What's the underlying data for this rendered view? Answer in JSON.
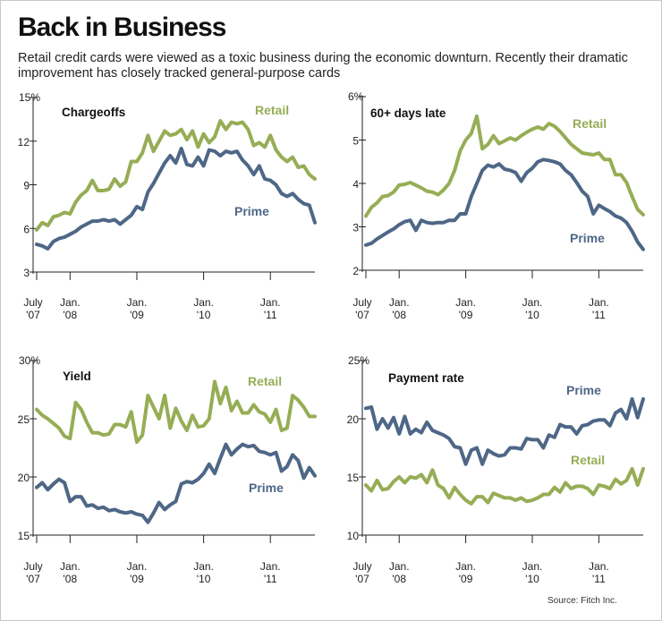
{
  "header": {
    "title": "Back in Business",
    "subtitle": "Retail credit cards were viewed as a toxic business during the economic downturn. Recently their dramatic improvement has closely tracked general-purpose cards"
  },
  "source": "Source: Fitch Inc.",
  "colors": {
    "retail": "#96ad55",
    "prime": "#4e6786",
    "axis": "#222222"
  },
  "chart_data": [
    {
      "type": "line",
      "title": "Chargeoffs",
      "ylabel": "%",
      "ylim": [
        3,
        15
      ],
      "yticks": [
        "15%",
        "12",
        "9",
        "6",
        "3"
      ],
      "xticks": [
        {
          "top": "July",
          "bottom": "'07"
        },
        {
          "top": "Jan.",
          "bottom": "'08"
        },
        {
          "top": "Jan.",
          "bottom": "'09"
        },
        {
          "top": "Jan.",
          "bottom": "'10"
        },
        {
          "top": "Jan.",
          "bottom": "'11"
        }
      ],
      "x_start": "2007-07",
      "series": [
        {
          "name": "Retail",
          "values": [
            5.9,
            6.4,
            6.2,
            6.8,
            6.9,
            7.1,
            7.0,
            7.8,
            8.3,
            8.6,
            9.3,
            8.6,
            8.6,
            8.7,
            9.4,
            8.9,
            9.2,
            10.6,
            10.6,
            11.2,
            12.4,
            11.3,
            12.0,
            12.7,
            12.4,
            12.5,
            12.8,
            12.1,
            12.7,
            11.6,
            12.5,
            11.9,
            12.3,
            13.4,
            12.8,
            13.3,
            13.2,
            13.3,
            12.8,
            11.7,
            11.9,
            11.6,
            12.4,
            11.4,
            10.9,
            10.6,
            10.9,
            10.2,
            10.3,
            9.7,
            9.4
          ]
        },
        {
          "name": "Prime",
          "values": [
            4.9,
            4.8,
            4.6,
            5.1,
            5.3,
            5.4,
            5.6,
            5.8,
            6.1,
            6.3,
            6.5,
            6.5,
            6.6,
            6.5,
            6.6,
            6.3,
            6.6,
            6.9,
            7.5,
            7.3,
            8.5,
            9.1,
            9.8,
            10.5,
            11.0,
            10.5,
            11.5,
            10.4,
            10.3,
            10.9,
            10.3,
            11.4,
            11.3,
            11.0,
            11.3,
            11.2,
            11.3,
            10.7,
            10.3,
            9.7,
            10.3,
            9.4,
            9.3,
            9.0,
            8.4,
            8.2,
            8.4,
            8.0,
            7.7,
            7.6,
            6.4
          ]
        }
      ]
    },
    {
      "type": "line",
      "title": "60+ days late",
      "ylabel": "%",
      "ylim": [
        2,
        6
      ],
      "yticks": [
        "6%",
        "5",
        "4",
        "3",
        "2"
      ],
      "xticks": [
        {
          "top": "July",
          "bottom": "'07"
        },
        {
          "top": "Jan.",
          "bottom": "'08"
        },
        {
          "top": "Jan.",
          "bottom": "'09"
        },
        {
          "top": "Jan.",
          "bottom": "'10"
        },
        {
          "top": "Jan.",
          "bottom": "'11"
        }
      ],
      "x_start": "2007-07",
      "series": [
        {
          "name": "Retail",
          "values": [
            3.25,
            3.45,
            3.55,
            3.7,
            3.72,
            3.8,
            3.96,
            3.98,
            4.02,
            3.96,
            3.9,
            3.82,
            3.8,
            3.74,
            3.85,
            4.0,
            4.3,
            4.75,
            5.0,
            5.15,
            5.55,
            4.8,
            4.9,
            5.1,
            4.92,
            4.98,
            5.05,
            5.0,
            5.1,
            5.18,
            5.25,
            5.3,
            5.25,
            5.38,
            5.32,
            5.2,
            5.05,
            4.9,
            4.8,
            4.7,
            4.68,
            4.66,
            4.7,
            4.55,
            4.55,
            4.2,
            4.2,
            4.02,
            3.7,
            3.4,
            3.28
          ]
        },
        {
          "name": "Prime",
          "values": [
            2.58,
            2.62,
            2.72,
            2.8,
            2.88,
            2.95,
            3.05,
            3.12,
            3.15,
            2.92,
            3.15,
            3.1,
            3.08,
            3.1,
            3.1,
            3.15,
            3.15,
            3.3,
            3.3,
            3.7,
            4.0,
            4.3,
            4.42,
            4.38,
            4.45,
            4.33,
            4.3,
            4.25,
            4.05,
            4.25,
            4.35,
            4.5,
            4.55,
            4.53,
            4.5,
            4.45,
            4.3,
            4.2,
            4.02,
            3.82,
            3.7,
            3.3,
            3.5,
            3.42,
            3.35,
            3.25,
            3.2,
            3.1,
            2.9,
            2.65,
            2.48
          ]
        }
      ]
    },
    {
      "type": "line",
      "title": "Yield",
      "ylabel": "%",
      "ylim": [
        15,
        30
      ],
      "yticks": [
        "30%",
        "25",
        "20",
        "15"
      ],
      "xticks": [
        {
          "top": "July",
          "bottom": "'07"
        },
        {
          "top": "Jan.",
          "bottom": "'08"
        },
        {
          "top": "Jan.",
          "bottom": "'09"
        },
        {
          "top": "Jan.",
          "bottom": "'10"
        },
        {
          "top": "Jan.",
          "bottom": "'11"
        }
      ],
      "x_start": "2007-07",
      "series": [
        {
          "name": "Retail",
          "values": [
            25.8,
            25.3,
            25.0,
            24.6,
            24.2,
            23.5,
            23.3,
            26.4,
            25.8,
            24.7,
            23.8,
            23.8,
            23.6,
            23.7,
            24.5,
            24.5,
            24.3,
            25.6,
            23.0,
            23.6,
            27.0,
            26.0,
            25.0,
            27.0,
            24.2,
            25.9,
            24.8,
            24.0,
            25.3,
            24.3,
            24.4,
            25.0,
            28.2,
            26.3,
            27.7,
            25.7,
            26.5,
            25.5,
            25.5,
            26.2,
            25.6,
            25.4,
            24.7,
            25.8,
            24.0,
            24.2,
            27.0,
            26.6,
            26.0,
            25.2,
            25.2
          ]
        },
        {
          "name": "Prime",
          "values": [
            19.1,
            19.5,
            18.9,
            19.4,
            19.8,
            19.5,
            17.9,
            18.3,
            18.3,
            17.5,
            17.6,
            17.3,
            17.4,
            17.1,
            17.2,
            17.0,
            16.9,
            17.0,
            16.8,
            16.7,
            16.1,
            16.9,
            17.8,
            17.2,
            17.6,
            17.9,
            19.4,
            19.6,
            19.5,
            19.8,
            20.3,
            21.1,
            20.3,
            21.6,
            22.8,
            21.9,
            22.4,
            22.8,
            22.6,
            22.7,
            22.2,
            22.1,
            21.9,
            22.1,
            20.5,
            20.9,
            21.9,
            21.4,
            19.9,
            20.8,
            20.1
          ]
        }
      ]
    },
    {
      "type": "line",
      "title": "Payment rate",
      "ylabel": "%",
      "ylim": [
        10,
        25
      ],
      "yticks": [
        "25%",
        "20",
        "15",
        "10"
      ],
      "xticks": [
        {
          "top": "July",
          "bottom": "'07"
        },
        {
          "top": "Jan.",
          "bottom": "'08"
        },
        {
          "top": "Jan.",
          "bottom": "'09"
        },
        {
          "top": "Jan.",
          "bottom": "'10"
        },
        {
          "top": "Jan.",
          "bottom": "'11"
        }
      ],
      "x_start": "2007-07",
      "series": [
        {
          "name": "Prime",
          "values": [
            20.9,
            21.0,
            19.1,
            20.0,
            19.2,
            20.1,
            18.7,
            20.2,
            18.7,
            19.1,
            18.8,
            19.7,
            19.0,
            18.8,
            18.6,
            18.3,
            17.6,
            17.5,
            16.1,
            17.3,
            17.5,
            16.1,
            17.3,
            17.0,
            16.8,
            16.9,
            17.5,
            17.5,
            17.4,
            18.3,
            18.2,
            18.2,
            17.5,
            18.6,
            18.4,
            19.5,
            19.3,
            19.3,
            18.7,
            19.4,
            19.5,
            19.8,
            19.9,
            19.9,
            19.4,
            20.5,
            20.8,
            20.0,
            21.7,
            20.1,
            21.7
          ]
        },
        {
          "name": "Retail",
          "values": [
            14.3,
            13.8,
            14.7,
            13.9,
            14.0,
            14.6,
            15.0,
            14.5,
            15.0,
            14.9,
            15.2,
            14.5,
            15.6,
            14.3,
            14.0,
            13.2,
            14.1,
            13.5,
            13.0,
            12.7,
            13.3,
            13.3,
            12.8,
            13.6,
            13.4,
            13.2,
            13.2,
            13.0,
            13.2,
            12.9,
            13.0,
            13.2,
            13.5,
            13.5,
            14.1,
            13.7,
            14.5,
            14.0,
            14.2,
            14.2,
            14.0,
            13.5,
            14.3,
            14.2,
            14.0,
            14.8,
            14.4,
            14.7,
            15.7,
            14.3,
            15.7
          ]
        }
      ]
    }
  ]
}
